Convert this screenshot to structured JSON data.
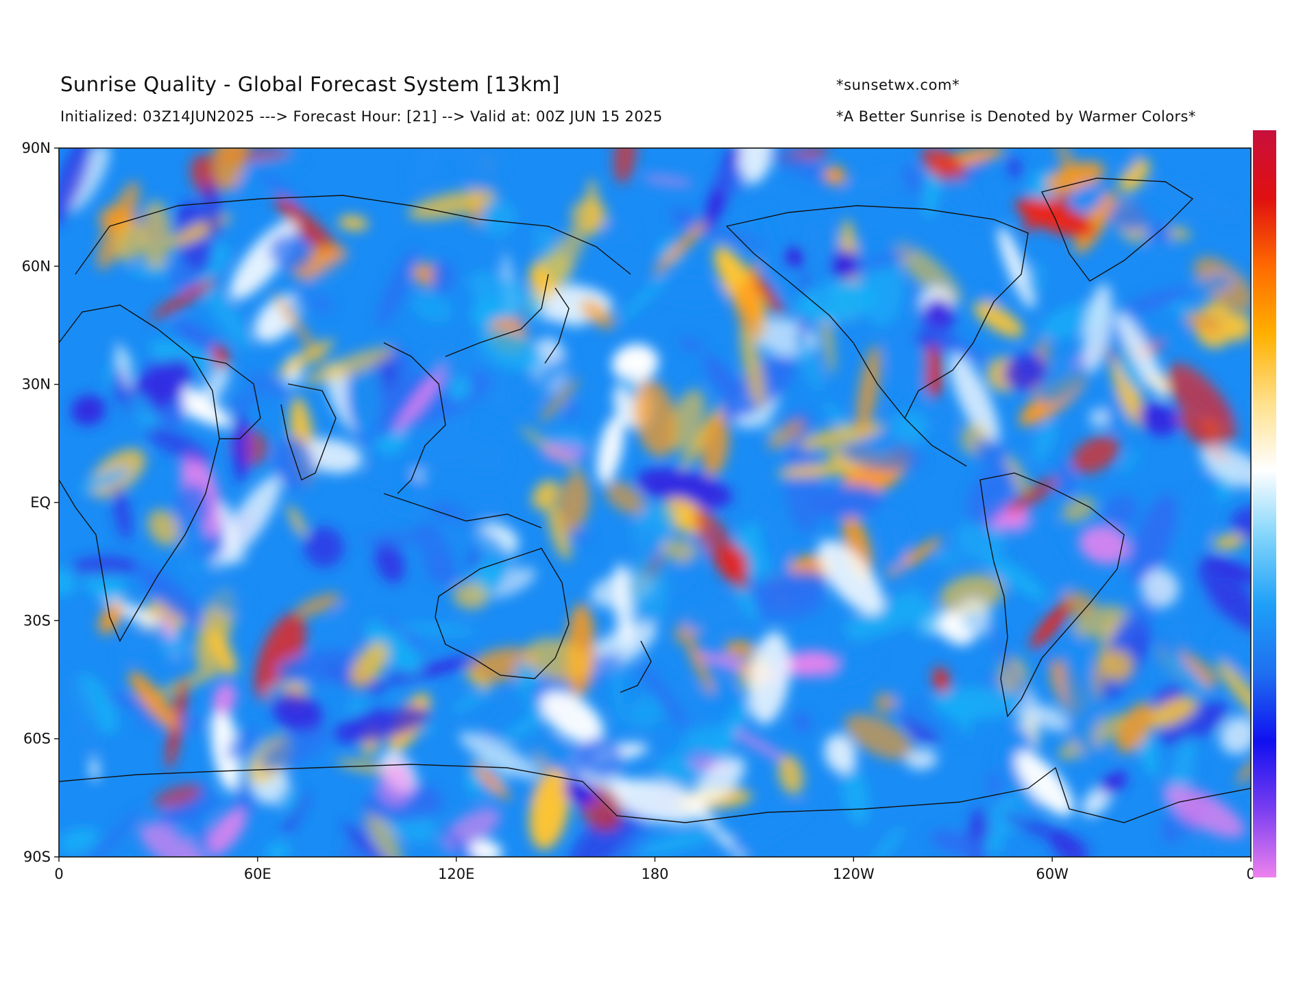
{
  "header": {
    "title": "Sunrise Quality - Global Forecast System [13km]",
    "subtitle": "Initialized: 03Z14JUN2025 ---> Forecast Hour: [21] --> Valid at: 00Z JUN 15 2025",
    "site": "*sunsetwx.com*",
    "note": "*A Better Sunrise is Denoted by Warmer Colors*"
  },
  "map": {
    "projection": "plate-carree",
    "y_ticks": [
      "90N",
      "60N",
      "30N",
      "EQ",
      "30S",
      "60S",
      "90S"
    ],
    "x_ticks": [
      "0",
      "60E",
      "120E",
      "180",
      "120W",
      "60W",
      "0"
    ],
    "lat_range": [
      -90,
      90
    ],
    "lon_range": [
      0,
      360
    ],
    "colorbar_colors": [
      "#ee82ee",
      "#7a3ef0",
      "#1010f0",
      "#1e6ff0",
      "#1e9ff8",
      "#7fd4fb",
      "#ffffff",
      "#ffe08a",
      "#ffb000",
      "#ff6a00",
      "#e01010",
      "#c8103c"
    ],
    "field_colors": [
      "#1a8cf5",
      "#2b6ef2",
      "#19aef7",
      "#ffffff",
      "#ffc533",
      "#ff9a1a",
      "#e8261d",
      "#ee82ee",
      "#3522e0"
    ]
  }
}
